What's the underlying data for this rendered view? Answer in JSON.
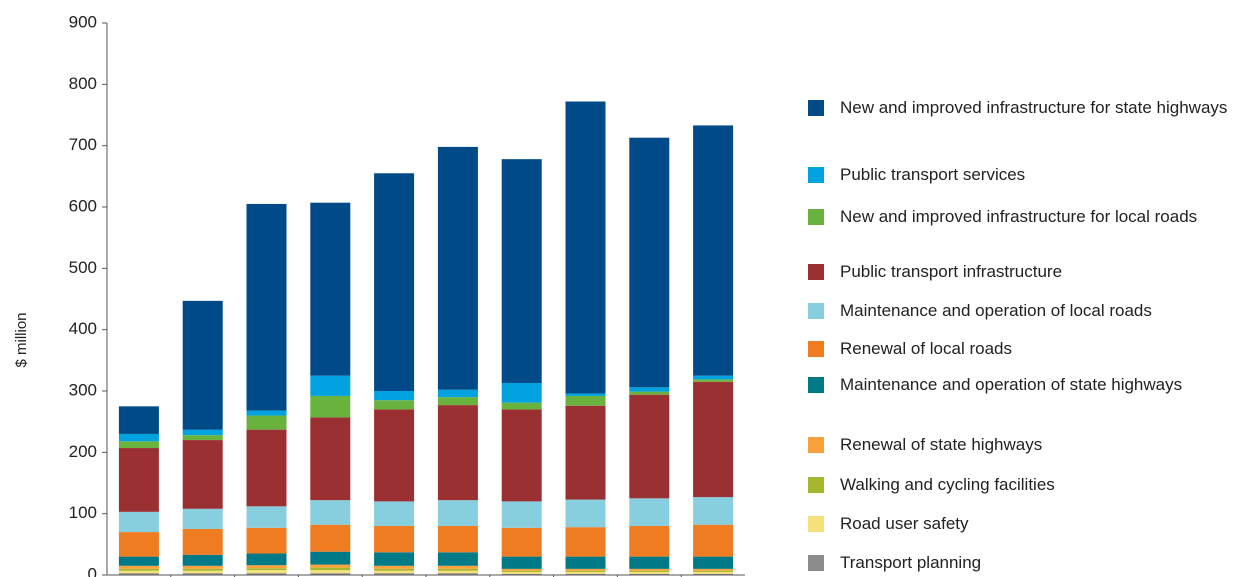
{
  "chart_data": {
    "type": "stacked_bar",
    "y_label": "$ million",
    "categories": [
      null,
      null,
      null,
      null,
      null,
      null,
      null,
      null,
      null,
      null
    ],
    "ylim": [
      0,
      900
    ],
    "yticks": [
      0,
      100,
      200,
      300,
      400,
      500,
      600,
      700,
      800,
      900
    ],
    "legend": "right",
    "series": [
      {
        "name": "New and improved infrastructure for state highways",
        "color": "#004b87",
        "values": [
          45,
          210,
          337,
          282,
          355,
          396,
          365,
          476,
          407,
          408
        ]
      },
      {
        "name": "Public transport services",
        "color": "#00a3e0",
        "values": [
          12,
          9,
          8,
          33,
          15,
          12,
          32,
          4,
          7,
          6
        ]
      },
      {
        "name": "New and improved infrastructure for local roads",
        "color": "#6ab23e",
        "values": [
          11,
          8,
          23,
          35,
          15,
          13,
          11,
          16,
          5,
          4
        ]
      },
      {
        "name": "Public transport infrastructure",
        "color": "#9b3033",
        "values": [
          104,
          112,
          125,
          135,
          150,
          155,
          150,
          153,
          169,
          188
        ]
      },
      {
        "name": "Maintenance and operation of local roads",
        "color": "#87cede",
        "values": [
          33,
          33,
          35,
          40,
          40,
          42,
          43,
          45,
          45,
          45
        ]
      },
      {
        "name": "Renewal of local roads",
        "color": "#f07c22",
        "values": [
          40,
          42,
          42,
          44,
          43,
          43,
          47,
          48,
          50,
          52
        ]
      },
      {
        "name": "Maintenance and operation of state highways",
        "color": "#007a87",
        "values": [
          15,
          18,
          19,
          21,
          22,
          22,
          20,
          20,
          20,
          20
        ]
      },
      {
        "name": "Renewal of state highways",
        "color": "#f9a23b",
        "values": [
          5,
          5,
          5,
          5,
          5,
          5,
          3,
          3,
          3,
          3
        ]
      },
      {
        "name": "Walking and cycling facilities",
        "color": "#a4b72f",
        "values": [
          3,
          3,
          3,
          4,
          3,
          3,
          2,
          2,
          2,
          2
        ]
      },
      {
        "name": "Road user safety",
        "color": "#f5e17a",
        "values": [
          4,
          4,
          5,
          5,
          4,
          4,
          3,
          3,
          3,
          3
        ]
      },
      {
        "name": "Transport planning",
        "color": "#8c8c8c",
        "values": [
          3,
          3,
          3,
          3,
          3,
          3,
          2,
          2,
          2,
          2
        ]
      }
    ]
  }
}
